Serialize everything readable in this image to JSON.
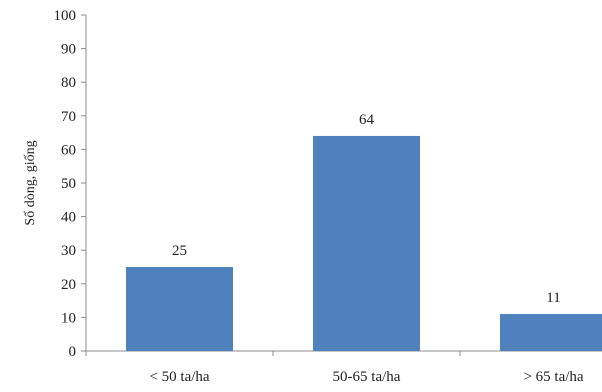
{
  "chart_data": {
    "type": "bar",
    "categories": [
      "< 50 ta/ha",
      "50-65 ta/ha",
      "> 65 ta/ha"
    ],
    "values": [
      25,
      64,
      11
    ],
    "data_labels": [
      "25",
      "64",
      "11"
    ],
    "title": "",
    "xlabel": "",
    "ylabel": "Số dòng, giống",
    "ylim": [
      0,
      100
    ],
    "yticks": [
      0,
      10,
      20,
      30,
      40,
      50,
      60,
      70,
      80,
      90,
      100
    ],
    "grid": false,
    "legend": "none",
    "bar_color": "#4f81bd"
  }
}
